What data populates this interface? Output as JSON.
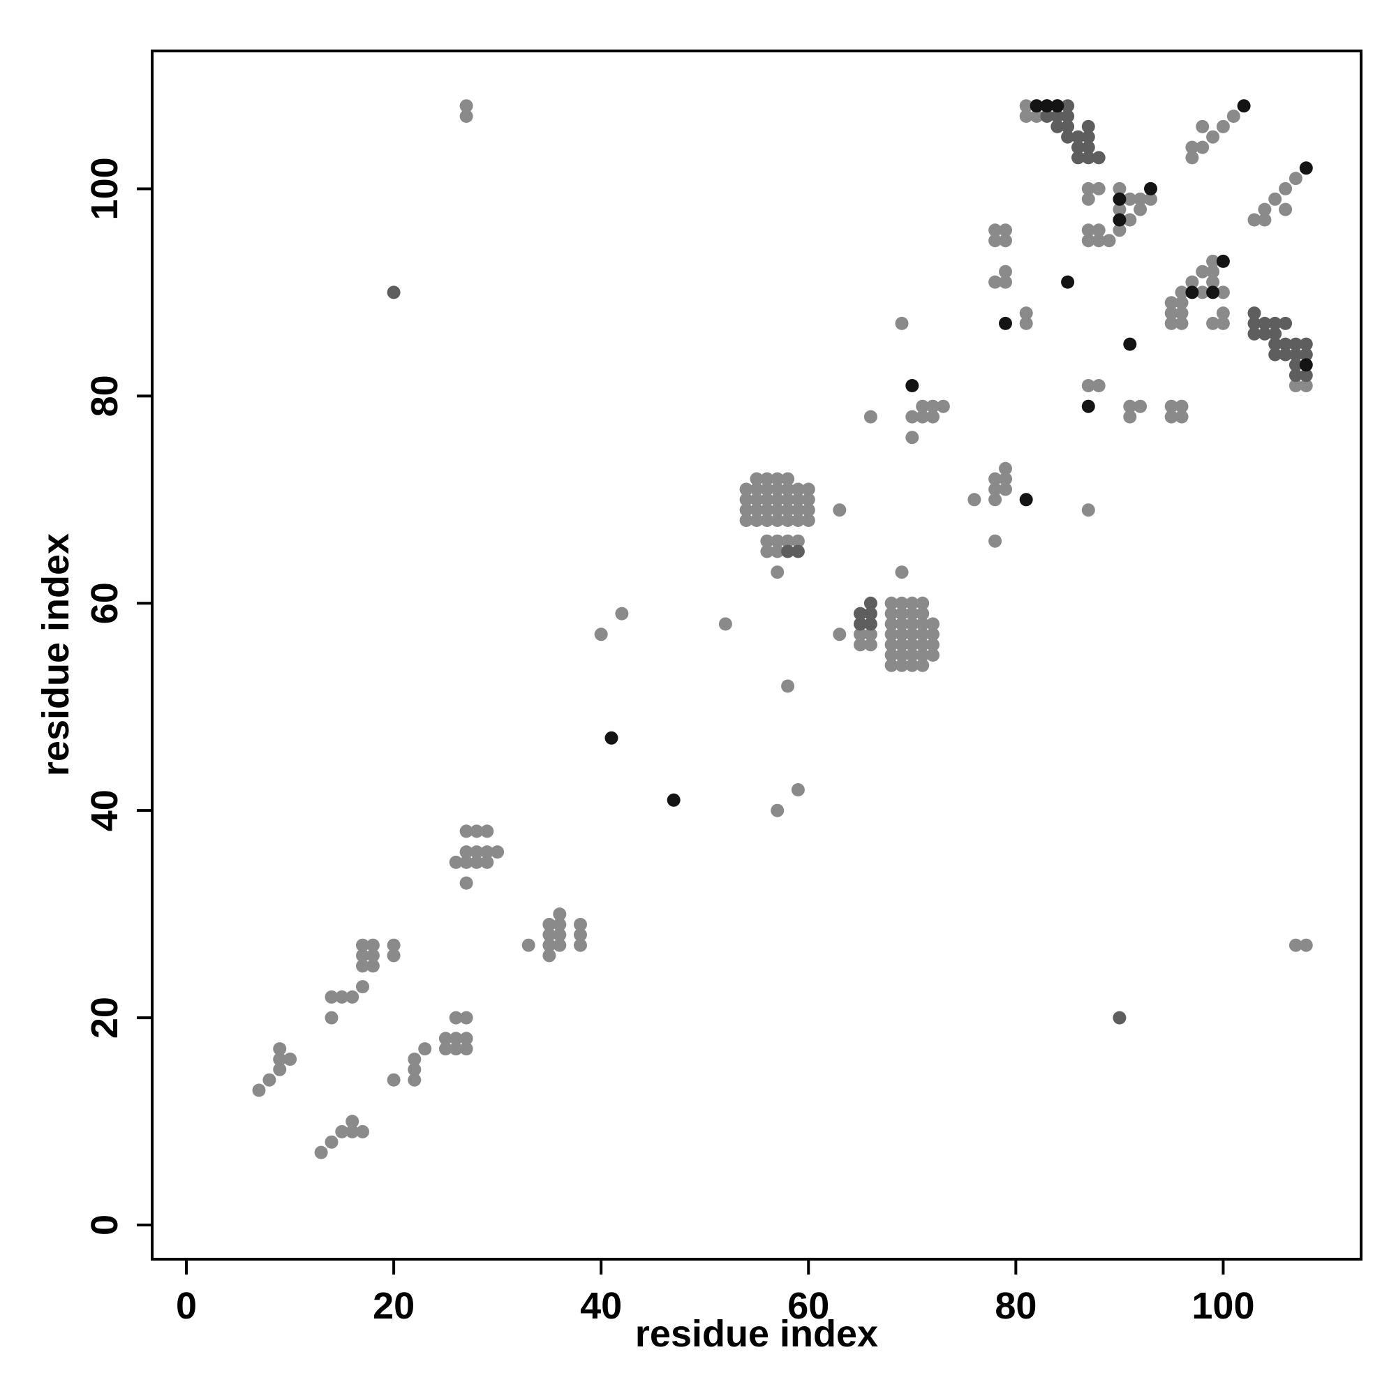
{
  "chart_data": {
    "type": "scatter",
    "title": "",
    "xlabel": "residue index",
    "ylabel": "residue index",
    "xlim": [
      -3.3,
      113.3
    ],
    "ylim": [
      -3.3,
      113.3
    ],
    "xticks": [
      0,
      20,
      40,
      60,
      80,
      100
    ],
    "yticks": [
      0,
      20,
      40,
      60,
      80,
      100
    ],
    "grid": false,
    "colors": {
      "light": "#8a8a8a",
      "medium": "#5e5e5e",
      "dark": "#141414"
    },
    "series": [
      {
        "tone": "light",
        "points": [
          [
            7,
            13
          ],
          [
            8,
            14
          ],
          [
            9,
            15
          ],
          [
            9,
            16
          ],
          [
            9,
            17
          ],
          [
            10,
            16
          ],
          [
            13,
            7
          ],
          [
            14,
            8
          ],
          [
            15,
            9
          ],
          [
            16,
            9
          ],
          [
            16,
            10
          ],
          [
            17,
            9
          ],
          [
            14,
            20
          ],
          [
            14,
            22
          ],
          [
            15,
            22
          ],
          [
            16,
            22
          ],
          [
            17,
            23
          ],
          [
            17,
            25
          ],
          [
            17,
            26
          ],
          [
            17,
            27
          ],
          [
            18,
            25
          ],
          [
            18,
            26
          ],
          [
            18,
            27
          ],
          [
            20,
            26
          ],
          [
            20,
            27
          ],
          [
            20,
            14
          ],
          [
            22,
            14
          ],
          [
            22,
            15
          ],
          [
            22,
            16
          ],
          [
            23,
            17
          ],
          [
            25,
            17
          ],
          [
            25,
            18
          ],
          [
            26,
            17
          ],
          [
            26,
            18
          ],
          [
            26,
            20
          ],
          [
            27,
            17
          ],
          [
            27,
            18
          ],
          [
            27,
            20
          ],
          [
            26,
            35
          ],
          [
            27,
            33
          ],
          [
            27,
            35
          ],
          [
            27,
            36
          ],
          [
            27,
            38
          ],
          [
            28,
            35
          ],
          [
            28,
            36
          ],
          [
            28,
            38
          ],
          [
            29,
            35
          ],
          [
            29,
            36
          ],
          [
            29,
            38
          ],
          [
            30,
            36
          ],
          [
            27,
            107
          ],
          [
            27,
            108
          ],
          [
            33,
            27
          ],
          [
            35,
            26
          ],
          [
            35,
            27
          ],
          [
            35,
            28
          ],
          [
            35,
            29
          ],
          [
            36,
            27
          ],
          [
            36,
            28
          ],
          [
            36,
            29
          ],
          [
            36,
            30
          ],
          [
            38,
            27
          ],
          [
            38,
            28
          ],
          [
            38,
            29
          ],
          [
            40,
            57
          ],
          [
            42,
            59
          ],
          [
            52,
            58
          ],
          [
            54,
            68
          ],
          [
            54,
            69
          ],
          [
            54,
            70
          ],
          [
            54,
            71
          ],
          [
            55,
            68
          ],
          [
            55,
            69
          ],
          [
            55,
            70
          ],
          [
            55,
            71
          ],
          [
            55,
            72
          ],
          [
            56,
            68
          ],
          [
            56,
            69
          ],
          [
            56,
            70
          ],
          [
            56,
            71
          ],
          [
            56,
            72
          ],
          [
            57,
            68
          ],
          [
            57,
            69
          ],
          [
            57,
            70
          ],
          [
            57,
            71
          ],
          [
            57,
            72
          ],
          [
            58,
            68
          ],
          [
            58,
            69
          ],
          [
            58,
            70
          ],
          [
            58,
            71
          ],
          [
            58,
            72
          ],
          [
            59,
            68
          ],
          [
            59,
            69
          ],
          [
            59,
            70
          ],
          [
            59,
            71
          ],
          [
            60,
            68
          ],
          [
            60,
            69
          ],
          [
            60,
            70
          ],
          [
            60,
            71
          ],
          [
            56,
            65
          ],
          [
            56,
            66
          ],
          [
            57,
            65
          ],
          [
            57,
            66
          ],
          [
            57,
            63
          ],
          [
            58,
            66
          ],
          [
            59,
            66
          ],
          [
            57,
            40
          ],
          [
            58,
            52
          ],
          [
            59,
            42
          ],
          [
            63,
            57
          ],
          [
            63,
            69
          ],
          [
            65,
            56
          ],
          [
            65,
            57
          ],
          [
            66,
            56
          ],
          [
            66,
            57
          ],
          [
            68,
            54
          ],
          [
            68,
            55
          ],
          [
            68,
            56
          ],
          [
            68,
            57
          ],
          [
            68,
            58
          ],
          [
            68,
            59
          ],
          [
            68,
            60
          ],
          [
            69,
            54
          ],
          [
            69,
            55
          ],
          [
            69,
            56
          ],
          [
            69,
            57
          ],
          [
            69,
            58
          ],
          [
            69,
            59
          ],
          [
            69,
            60
          ],
          [
            70,
            54
          ],
          [
            70,
            55
          ],
          [
            70,
            56
          ],
          [
            70,
            57
          ],
          [
            70,
            58
          ],
          [
            70,
            59
          ],
          [
            70,
            60
          ],
          [
            71,
            54
          ],
          [
            71,
            55
          ],
          [
            71,
            56
          ],
          [
            71,
            57
          ],
          [
            71,
            58
          ],
          [
            71,
            59
          ],
          [
            71,
            60
          ],
          [
            72,
            55
          ],
          [
            72,
            56
          ],
          [
            72,
            57
          ],
          [
            72,
            58
          ],
          [
            69,
            63
          ],
          [
            69,
            87
          ],
          [
            66,
            78
          ],
          [
            70,
            76
          ],
          [
            70,
            78
          ],
          [
            71,
            78
          ],
          [
            71,
            79
          ],
          [
            72,
            78
          ],
          [
            72,
            79
          ],
          [
            73,
            79
          ],
          [
            76,
            70
          ],
          [
            78,
            66
          ],
          [
            78,
            70
          ],
          [
            78,
            71
          ],
          [
            78,
            72
          ],
          [
            79,
            71
          ],
          [
            79,
            72
          ],
          [
            79,
            73
          ],
          [
            78,
            91
          ],
          [
            78,
            95
          ],
          [
            78,
            96
          ],
          [
            79,
            91
          ],
          [
            79,
            92
          ],
          [
            79,
            95
          ],
          [
            79,
            96
          ],
          [
            81,
            87
          ],
          [
            81,
            88
          ],
          [
            81,
            107
          ],
          [
            81,
            108
          ],
          [
            82,
            107
          ],
          [
            82,
            108
          ],
          [
            87,
            69
          ],
          [
            87,
            81
          ],
          [
            88,
            81
          ],
          [
            87,
            95
          ],
          [
            87,
            96
          ],
          [
            87,
            99
          ],
          [
            87,
            100
          ],
          [
            88,
            95
          ],
          [
            88,
            96
          ],
          [
            88,
            100
          ],
          [
            89,
            95
          ],
          [
            90,
            96
          ],
          [
            90,
            98
          ],
          [
            90,
            100
          ],
          [
            91,
            78
          ],
          [
            91,
            79
          ],
          [
            91,
            97
          ],
          [
            91,
            99
          ],
          [
            92,
            79
          ],
          [
            92,
            98
          ],
          [
            92,
            99
          ],
          [
            93,
            99
          ],
          [
            95,
            78
          ],
          [
            95,
            79
          ],
          [
            96,
            78
          ],
          [
            96,
            79
          ],
          [
            95,
            87
          ],
          [
            95,
            88
          ],
          [
            95,
            89
          ],
          [
            96,
            87
          ],
          [
            96,
            88
          ],
          [
            96,
            89
          ],
          [
            96,
            90
          ],
          [
            97,
            91
          ],
          [
            97,
            103
          ],
          [
            97,
            104
          ],
          [
            98,
            90
          ],
          [
            98,
            92
          ],
          [
            98,
            104
          ],
          [
            98,
            106
          ],
          [
            99,
            87
          ],
          [
            99,
            91
          ],
          [
            99,
            92
          ],
          [
            99,
            93
          ],
          [
            99,
            105
          ],
          [
            100,
            87
          ],
          [
            100,
            88
          ],
          [
            100,
            90
          ],
          [
            100,
            106
          ],
          [
            101,
            107
          ],
          [
            103,
            97
          ],
          [
            104,
            97
          ],
          [
            104,
            98
          ],
          [
            105,
            99
          ],
          [
            106,
            98
          ],
          [
            106,
            100
          ],
          [
            107,
            101
          ],
          [
            107,
            27
          ],
          [
            108,
            27
          ],
          [
            107,
            81
          ],
          [
            108,
            81
          ]
        ]
      },
      {
        "tone": "medium",
        "points": [
          [
            20,
            90
          ],
          [
            90,
            20
          ],
          [
            58,
            65
          ],
          [
            59,
            65
          ],
          [
            65,
            58
          ],
          [
            65,
            59
          ],
          [
            66,
            58
          ],
          [
            66,
            59
          ],
          [
            66,
            60
          ],
          [
            83,
            107
          ],
          [
            83,
            108
          ],
          [
            84,
            106
          ],
          [
            84,
            107
          ],
          [
            84,
            108
          ],
          [
            85,
            105
          ],
          [
            85,
            106
          ],
          [
            85,
            107
          ],
          [
            85,
            108
          ],
          [
            86,
            103
          ],
          [
            86,
            104
          ],
          [
            86,
            105
          ],
          [
            87,
            103
          ],
          [
            87,
            104
          ],
          [
            87,
            105
          ],
          [
            87,
            106
          ],
          [
            88,
            103
          ],
          [
            103,
            86
          ],
          [
            103,
            87
          ],
          [
            103,
            88
          ],
          [
            104,
            86
          ],
          [
            104,
            87
          ],
          [
            105,
            84
          ],
          [
            105,
            85
          ],
          [
            105,
            86
          ],
          [
            105,
            87
          ],
          [
            106,
            84
          ],
          [
            106,
            85
          ],
          [
            106,
            87
          ],
          [
            107,
            82
          ],
          [
            107,
            83
          ],
          [
            107,
            84
          ],
          [
            107,
            85
          ],
          [
            108,
            82
          ],
          [
            108,
            84
          ],
          [
            108,
            85
          ]
        ]
      },
      {
        "tone": "dark",
        "points": [
          [
            41,
            47
          ],
          [
            47,
            41
          ],
          [
            70,
            81
          ],
          [
            81,
            70
          ],
          [
            79,
            87
          ],
          [
            85,
            91
          ],
          [
            87,
            79
          ],
          [
            91,
            85
          ],
          [
            90,
            97
          ],
          [
            90,
            99
          ],
          [
            93,
            100
          ],
          [
            97,
            90
          ],
          [
            99,
            90
          ],
          [
            100,
            93
          ],
          [
            102,
            108
          ],
          [
            108,
            102
          ],
          [
            108,
            83
          ],
          [
            83,
            108
          ],
          [
            82,
            108
          ],
          [
            84,
            108
          ]
        ]
      }
    ]
  }
}
